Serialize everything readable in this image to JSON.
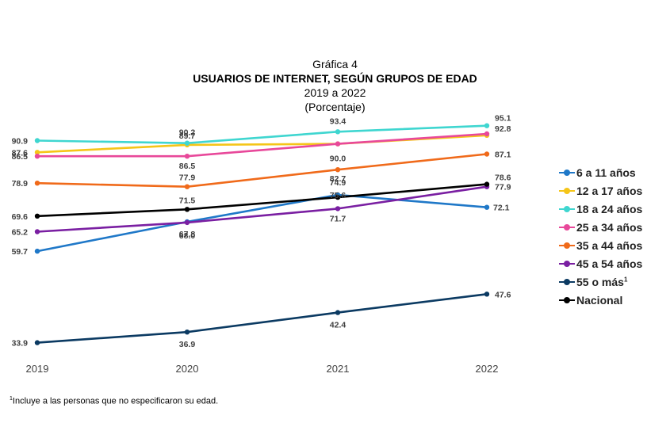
{
  "header": {
    "caption": "Gráfica 4",
    "title": "USUARIOS DE INTERNET, SEGÚN GRUPOS DE EDAD",
    "period": "2019 a 2022",
    "unit": "(Porcentaje)"
  },
  "footnote": {
    "marker": "1",
    "text": "Incluye a las personas que no especificaron su edad."
  },
  "chart_data": {
    "type": "line",
    "x": [
      "2019",
      "2020",
      "2021",
      "2022"
    ],
    "ylim": [
      30,
      100
    ],
    "grid": false,
    "legend_position": "right",
    "series": [
      {
        "name": "6 a 11 años",
        "superscript": "",
        "color": "#1f78c8",
        "values": [
          59.7,
          68.0,
          75.6,
          72.1
        ],
        "labels": [
          "59.7",
          "68.0",
          "75.6",
          "72.1"
        ]
      },
      {
        "name": "12 a 17 años",
        "superscript": "",
        "color": "#f5c518",
        "values": [
          87.6,
          89.7,
          90.0,
          92.4
        ],
        "labels": [
          "87.6",
          "89.7",
          "",
          ""
        ]
      },
      {
        "name": "18 a 24 años",
        "superscript": "",
        "color": "#3fd6d0",
        "values": [
          90.9,
          90.2,
          93.4,
          95.1
        ],
        "labels": [
          "90.9",
          "90.2",
          "93.4",
          "95.1"
        ]
      },
      {
        "name": "25 a 34 años",
        "superscript": "",
        "color": "#e8489a",
        "values": [
          86.5,
          86.5,
          90.0,
          92.8
        ],
        "labels": [
          "86.5",
          "86.5",
          "90.0",
          "92.8"
        ]
      },
      {
        "name": "35 a 44 años",
        "superscript": "",
        "color": "#f06a1a",
        "values": [
          78.9,
          77.9,
          82.7,
          87.1
        ],
        "labels": [
          "78.9",
          "77.9",
          "82.7",
          "87.1"
        ]
      },
      {
        "name": "45 a 54 años",
        "superscript": "",
        "color": "#7a1fa2",
        "values": [
          65.2,
          67.8,
          71.7,
          77.9
        ],
        "labels": [
          "65.2",
          "67.8",
          "71.7",
          "77.9"
        ]
      },
      {
        "name": "55 o más",
        "superscript": "1",
        "color": "#0b3a62",
        "values": [
          33.9,
          36.9,
          42.4,
          47.6
        ],
        "labels": [
          "33.9",
          "36.9",
          "42.4",
          "47.6"
        ]
      },
      {
        "name": "Nacional",
        "superscript": "",
        "color": "#000000",
        "values": [
          69.6,
          71.5,
          74.9,
          78.6
        ],
        "labels": [
          "69.6",
          "71.5",
          "74.9",
          "78.6"
        ]
      }
    ]
  }
}
